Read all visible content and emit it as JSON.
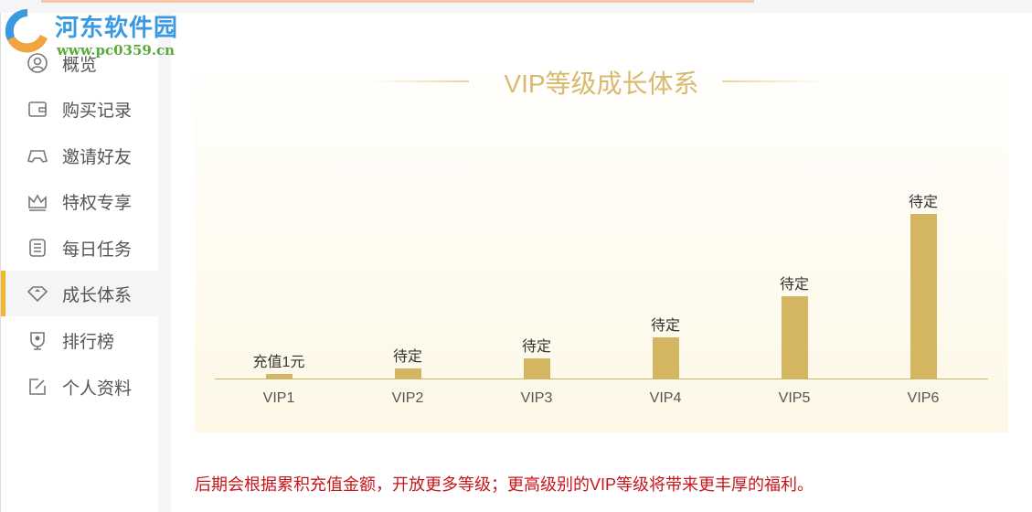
{
  "logo": {
    "name": "河东软件园",
    "url": "www.pc0359.cn"
  },
  "sidebar": {
    "items": [
      {
        "label": "概览",
        "icon": "user-circle-icon"
      },
      {
        "label": "购买记录",
        "icon": "wallet-icon"
      },
      {
        "label": "邀请好友",
        "icon": "gamepad-icon"
      },
      {
        "label": "特权专享",
        "icon": "crown-icon"
      },
      {
        "label": "每日任务",
        "icon": "list-icon"
      },
      {
        "label": "成长体系",
        "icon": "diamond-icon",
        "active": true
      },
      {
        "label": "排行榜",
        "icon": "trophy-icon"
      },
      {
        "label": "个人资料",
        "icon": "edit-icon"
      }
    ]
  },
  "main": {
    "title": "VIP等级成长体系",
    "note": "后期会根据累积充值金额，开放更多等级；更高级别的VIP等级将带来更丰厚的福利。"
  },
  "colors": {
    "bar": "#d4b562",
    "accent": "#f0b92d",
    "note": "#c8151c",
    "title": "#d7b970"
  },
  "chart_data": {
    "type": "bar",
    "categories": [
      "VIP1",
      "VIP2",
      "VIP3",
      "VIP4",
      "VIP5",
      "VIP6"
    ],
    "values": [
      0.03,
      0.06,
      0.12,
      0.25,
      0.5,
      1.0
    ],
    "data_labels": [
      "充值1元",
      "待定",
      "待定",
      "待定",
      "待定",
      "待定"
    ]
  }
}
